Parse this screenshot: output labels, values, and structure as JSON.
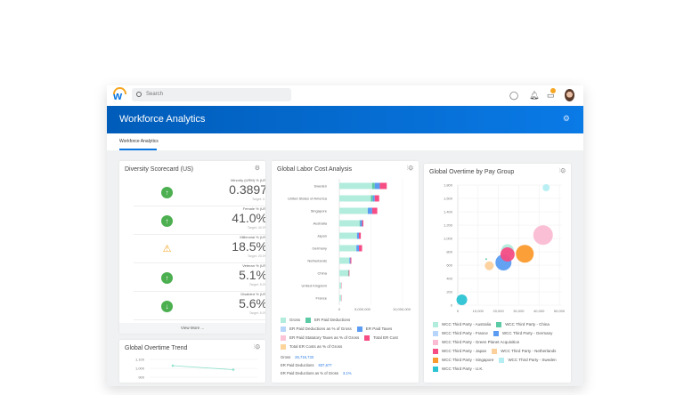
{
  "topbar": {
    "search_placeholder": "Search",
    "notification_count": "3"
  },
  "banner": {
    "title": "Workforce Analytics"
  },
  "tabs": [
    {
      "label": "Workforce Analytics",
      "active": true
    }
  ],
  "colors": {
    "brand": "#0875e1",
    "banner": "#005cb9",
    "up": "#4caf50",
    "warn": "#f5a623"
  },
  "scorecard": {
    "title": "Diversity Scorecard (US)",
    "view_more": "View More ...",
    "metrics": [
      {
        "label": "Minority (URM) % (US)",
        "value": "0.3897",
        "target": "Target: 0.4",
        "status": "up"
      },
      {
        "label": "Female % (US)",
        "value": "41.0%",
        "target": "Target: 40.0%",
        "status": "up"
      },
      {
        "label": "Millennial % (US)",
        "value": "18.5%",
        "target": "Target: 20.0%",
        "status": "warning"
      },
      {
        "label": "Veteran % (US)",
        "value": "5.1%",
        "target": "Target: 5.0%",
        "status": "up"
      },
      {
        "label": "Disabled % (US)",
        "value": "5.6%",
        "target": "Target: 5.0%",
        "status": "down"
      }
    ]
  },
  "overtime_trend": {
    "title": "Global Overtime Trend",
    "y_ticks": [
      "1,100",
      "1,000",
      "900"
    ],
    "points": [
      1030,
      985
    ]
  },
  "chart_data": [
    {
      "type": "bar",
      "title": "Global Labor Cost Analysis",
      "orientation": "horizontal",
      "stacked": true,
      "categories": [
        "Sweden",
        "United States of America",
        "Singapore",
        "Australia",
        "Japan",
        "Germany",
        "Netherlands",
        "China",
        "United Kingdom",
        "France"
      ],
      "x_ticks": [
        "0",
        "5,000,000",
        "10,000,000"
      ],
      "xlim": [
        0,
        10000000
      ],
      "grid": true,
      "series": [
        {
          "name": "Gross",
          "color": "#b2ecdc",
          "values": [
            5200000,
            5000000,
            4500000,
            3200000,
            2800000,
            2700000,
            1600000,
            1400000,
            300000,
            300000
          ]
        },
        {
          "name": "ER Paid Deductions",
          "color": "#5ccaa5",
          "values": [
            400000,
            300000,
            0,
            100000,
            0,
            0,
            0,
            100000,
            0,
            0
          ]
        },
        {
          "name": "ER Paid Deductions as % of Gross",
          "color": "#b7d5fb",
          "values": [
            0,
            0,
            0,
            0,
            0,
            0,
            0,
            0,
            0,
            0
          ]
        },
        {
          "name": "ER Paid Taxes",
          "color": "#5b9cf2",
          "values": [
            800000,
            300000,
            700000,
            300000,
            300000,
            400000,
            150000,
            0,
            0,
            0
          ]
        },
        {
          "name": "ER Paid Statutory Taxes as % of Gross",
          "color": "#fbc3d6",
          "values": [
            0,
            0,
            0,
            0,
            0,
            0,
            0,
            0,
            0,
            0
          ]
        },
        {
          "name": "Total ER Cost",
          "color": "#f64d84",
          "values": [
            1100000,
            700000,
            800000,
            200000,
            300000,
            500000,
            150000,
            100000,
            50000,
            50000
          ]
        },
        {
          "name": "Total ER Costs as % of Gross",
          "color": "#fcd59c",
          "values": [
            0,
            0,
            0,
            0,
            0,
            0,
            0,
            0,
            0,
            0
          ]
        }
      ],
      "summary": [
        {
          "label": "Gross",
          "value": "26,716,733"
        },
        {
          "label": "ER Paid Deductions",
          "value": "837,677"
        },
        {
          "label": "ER Paid Deductions as % of Gross",
          "value": "3.1%"
        }
      ]
    },
    {
      "type": "scatter",
      "subtype": "bubble",
      "title": "Global Overtime by Pay Group",
      "xlim": [
        0,
        50000
      ],
      "ylim": [
        0,
        1800
      ],
      "grid": true,
      "x_ticks": [
        "0",
        "10,000",
        "20,000",
        "30,000",
        "40,000",
        "50,000"
      ],
      "y_ticks": [
        "0",
        "200",
        "400",
        "600",
        "800",
        "1,000",
        "1,200",
        "1,400",
        "1,600",
        "1,800"
      ],
      "series": [
        {
          "name": "WCC Third Party - Australia",
          "color": "#b2ecdc",
          "x": 24500,
          "y": 820,
          "size": 7
        },
        {
          "name": "WCC Third Party - China",
          "color": "#5ccaa5",
          "x": 14000,
          "y": 690,
          "size": 1
        },
        {
          "name": "WCC Third Party - France",
          "color": "#b7d5fb",
          "x": 24000,
          "y": 800,
          "size": 5
        },
        {
          "name": "WCC Third Party - Germany",
          "color": "#5b9cf2",
          "x": 22500,
          "y": 640,
          "size": 9
        },
        {
          "name": "WCC Third Party - Green Planet Acquisition",
          "color": "#fbbcd3",
          "x": 42000,
          "y": 1050,
          "size": 11
        },
        {
          "name": "WCC Third Party - Japan",
          "color": "#f64d84",
          "x": 24500,
          "y": 760,
          "size": 8
        },
        {
          "name": "WCC Third Party - Netherlands",
          "color": "#fcd09c",
          "x": 15500,
          "y": 590,
          "size": 5
        },
        {
          "name": "WCC Third Party - Singapore",
          "color": "#fb9a2e",
          "x": 33000,
          "y": 770,
          "size": 10
        },
        {
          "name": "WCC Third Party - Sweden",
          "color": "#b5eef2",
          "x": 43500,
          "y": 1760,
          "size": 4
        },
        {
          "name": "WCC Third Party - U.K.",
          "color": "#2cc3d3",
          "x": 2000,
          "y": 80,
          "size": 6
        }
      ]
    }
  ]
}
